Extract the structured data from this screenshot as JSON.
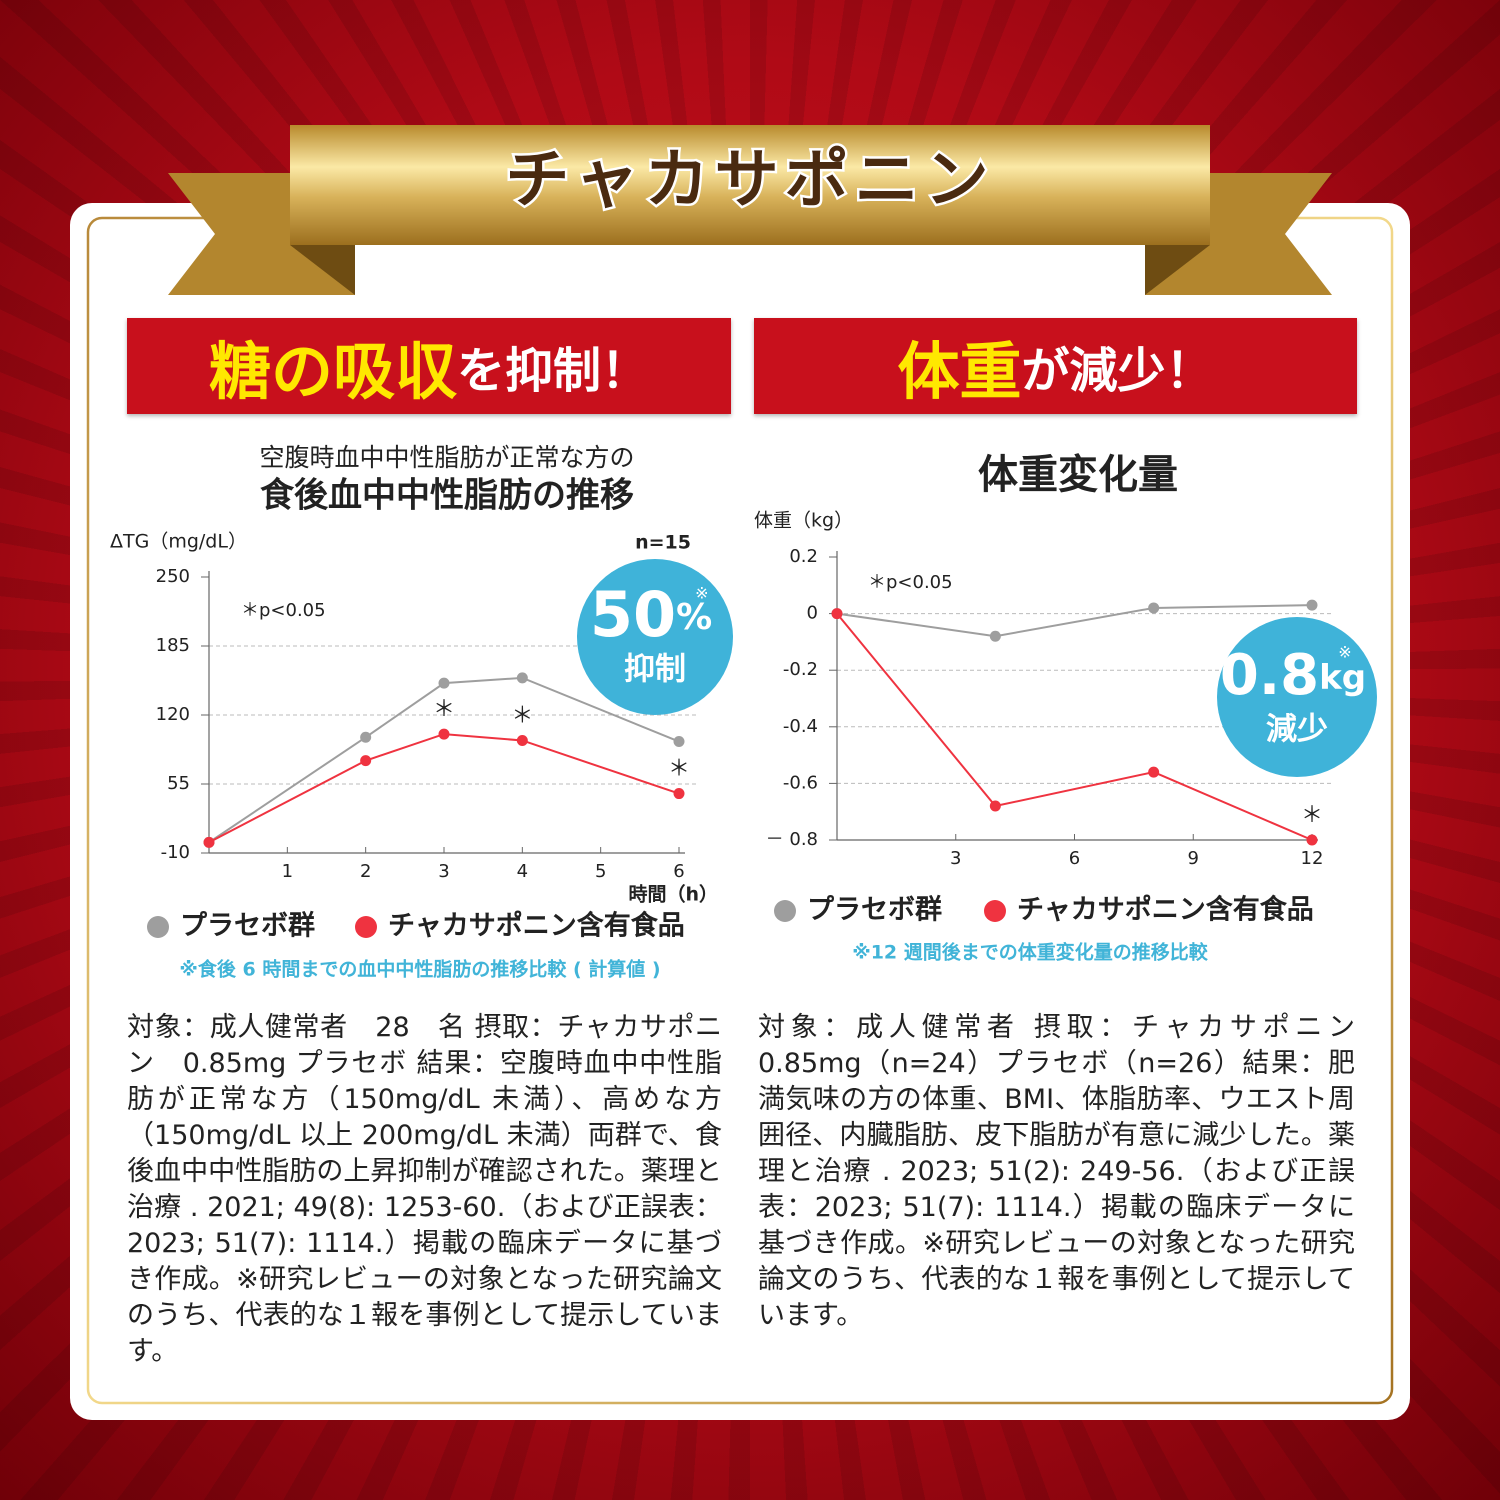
{
  "banner": {
    "title": "チャカサポニン"
  },
  "sections": [
    {
      "heading": {
        "highlight": "糖の吸収",
        "rest": "を抑制！"
      },
      "body": "対象：成人健常者　28　名 摂取：チャカサポニン　0.85mg プラセボ 結果：空腹時血中中性脂肪が正常な方（150mg/dL 未満）、高めな方（150mg/dL 以上 200mg/dL 未満）両群で、食後血中中性脂肪の上昇抑制が確認された。薬理と治療 . 2021; 49(8): 1253-60.（および正誤表：2023; 51(7): 1114.）掲載の臨床データに基づき作成。※研究レビューの対象となった研究論文のうち、代表的な１報を事例として提示しています。"
    },
    {
      "heading": {
        "highlight": "体重",
        "rest": "が減少！"
      },
      "body": "対象：成人健常者 摂取：チャカサポニン 0.85mg（n=24）プラセボ（n=26）結果：肥満気味の方の体重、BMI、体脂肪率、ウエスト周囲径、内臓脂肪、皮下脂肪が有意に減少した。薬理と治療 . 2023; 51(2): 249-56.（および正誤表：2023; 51(7): 1114.）掲載の臨床データに基づき作成。※研究レビューの対象となった研究論文のうち、代表的な１報を事例として提示しています。"
    }
  ],
  "chart_data": [
    {
      "type": "line",
      "subtitle": "空腹時血中中性脂肪が正常な方の",
      "title": "食後血中中性脂肪の推移",
      "y_label": "ΔTG（mg/dL）",
      "x_label": "時間（h）",
      "sample_size": "n=15",
      "significance": "＊p<0.05",
      "badge": {
        "value": "50",
        "unit": "%",
        "mark": "※",
        "label": "抑制"
      },
      "x": [
        0,
        2,
        3,
        4,
        6
      ],
      "series": [
        {
          "name": "プラセボ群",
          "color": "#9e9e9e",
          "values": [
            0,
            99,
            150,
            155,
            95
          ]
        },
        {
          "name": "チャカサポニン含有食品",
          "color": "#ef3340",
          "values": [
            0,
            77,
            102,
            96,
            46
          ]
        }
      ],
      "annotations": [
        {
          "text": "＊",
          "x": 3
        },
        {
          "text": "＊",
          "x": 4
        },
        {
          "text": "＊",
          "x": 6
        }
      ],
      "xlim": [
        0,
        6
      ],
      "xticks": [
        1,
        2,
        3,
        4,
        5,
        6
      ],
      "ylim": [
        -10,
        250
      ],
      "yticks": [
        -10,
        55,
        120,
        185,
        250
      ],
      "grid": true,
      "legend": "bottom",
      "note": "※食後 6 時間までの血中中性脂肪の推移比較 ( 計算値 )"
    },
    {
      "type": "line",
      "title": "体重変化量",
      "y_label": "体重（kg）",
      "significance": "＊p<0.05",
      "badge": {
        "value": "0.8",
        "unit": "kg",
        "mark": "※",
        "label": "減少"
      },
      "x": [
        0,
        4,
        8,
        12
      ],
      "series": [
        {
          "name": "プラセボ群",
          "color": "#9e9e9e",
          "values": [
            0,
            -0.08,
            0.02,
            0.03
          ]
        },
        {
          "name": "チャカサポニン含有食品",
          "color": "#ef3340",
          "values": [
            0,
            -0.68,
            -0.56,
            -0.8
          ]
        }
      ],
      "annotations": [
        {
          "text": "＊",
          "x": 12
        }
      ],
      "xlim": [
        0,
        12
      ],
      "xticks": [
        3,
        6,
        9,
        12
      ],
      "ylim": [
        -0.8,
        0.2
      ],
      "yticks": [
        {
          "value": -0.8,
          "label": "－ 0.8"
        },
        -0.6,
        -0.4,
        -0.2,
        0,
        0.2
      ],
      "grid": true,
      "legend": "bottom",
      "note": "※12 週間後までの体重変化量の推移比較"
    }
  ]
}
